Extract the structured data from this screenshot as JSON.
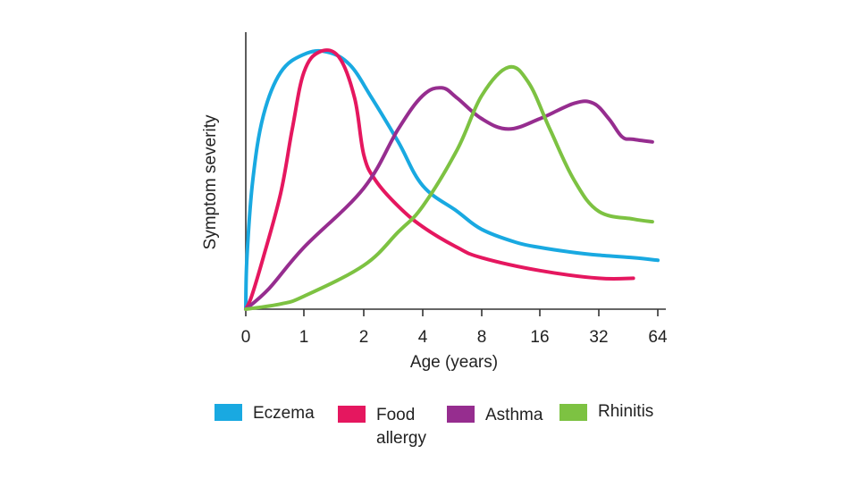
{
  "chart_data": {
    "type": "line",
    "title": "",
    "xlabel": "Age (years)",
    "ylabel": "Symptom severity",
    "x_scale": "log2-ish (0, then 1, 2, 4, 8, 16, 32, 64)",
    "x_ticks": [
      "0",
      "1",
      "2",
      "4",
      "8",
      "16",
      "32",
      "64"
    ],
    "ylim": [
      0,
      100
    ],
    "grid": false,
    "legend_position": "bottom",
    "series": [
      {
        "name": "Eczema",
        "color": "#19a9e1",
        "points": [
          [
            0,
            0
          ],
          [
            0.02,
            20
          ],
          [
            0.12,
            50
          ],
          [
            0.3,
            75
          ],
          [
            0.6,
            92
          ],
          [
            1.0,
            99
          ],
          [
            1.3,
            100
          ],
          [
            1.7,
            95
          ],
          [
            2.2,
            82
          ],
          [
            3.0,
            65
          ],
          [
            4.0,
            48
          ],
          [
            6.0,
            38
          ],
          [
            8.0,
            31
          ],
          [
            12,
            26
          ],
          [
            16,
            24
          ],
          [
            24,
            22
          ],
          [
            32,
            21
          ],
          [
            48,
            20
          ],
          [
            64,
            19
          ]
        ]
      },
      {
        "name": "Food allergy",
        "color": "#e5175f",
        "points": [
          [
            0,
            0
          ],
          [
            0.1,
            5
          ],
          [
            0.3,
            20
          ],
          [
            0.6,
            45
          ],
          [
            0.8,
            70
          ],
          [
            1.0,
            92
          ],
          [
            1.2,
            100
          ],
          [
            1.5,
            98
          ],
          [
            1.8,
            82
          ],
          [
            2.0,
            60
          ],
          [
            2.3,
            50
          ],
          [
            3.0,
            40
          ],
          [
            4.0,
            32
          ],
          [
            6.0,
            24
          ],
          [
            8.0,
            20
          ],
          [
            16,
            15
          ],
          [
            32,
            12
          ],
          [
            48,
            12
          ]
        ]
      },
      {
        "name": "Asthma",
        "color": "#962d8f",
        "points": [
          [
            0,
            0
          ],
          [
            0.4,
            8
          ],
          [
            1.0,
            24
          ],
          [
            2.0,
            47
          ],
          [
            3.0,
            70
          ],
          [
            4.0,
            83
          ],
          [
            5.0,
            86
          ],
          [
            6.0,
            82
          ],
          [
            8.0,
            74
          ],
          [
            11,
            70
          ],
          [
            16,
            74
          ],
          [
            24,
            80
          ],
          [
            30,
            80
          ],
          [
            36,
            74
          ],
          [
            42,
            67
          ],
          [
            48,
            66
          ],
          [
            60,
            65
          ]
        ]
      },
      {
        "name": "Rhinitis",
        "color": "#7dc242",
        "points": [
          [
            0,
            0
          ],
          [
            0.6,
            2
          ],
          [
            1.0,
            5
          ],
          [
            2.0,
            17
          ],
          [
            3.0,
            30
          ],
          [
            4.0,
            40
          ],
          [
            6.0,
            62
          ],
          [
            8.0,
            83
          ],
          [
            11,
            94
          ],
          [
            14,
            88
          ],
          [
            18,
            70
          ],
          [
            24,
            50
          ],
          [
            32,
            38
          ],
          [
            48,
            35
          ],
          [
            60,
            34
          ]
        ]
      }
    ],
    "legend": [
      {
        "label": "Eczema",
        "color": "#19a9e1"
      },
      {
        "label": "Food allergy",
        "color": "#e5175f"
      },
      {
        "label": "Asthma",
        "color": "#962d8f"
      },
      {
        "label": "Rhinitis",
        "color": "#7dc242"
      }
    ]
  }
}
